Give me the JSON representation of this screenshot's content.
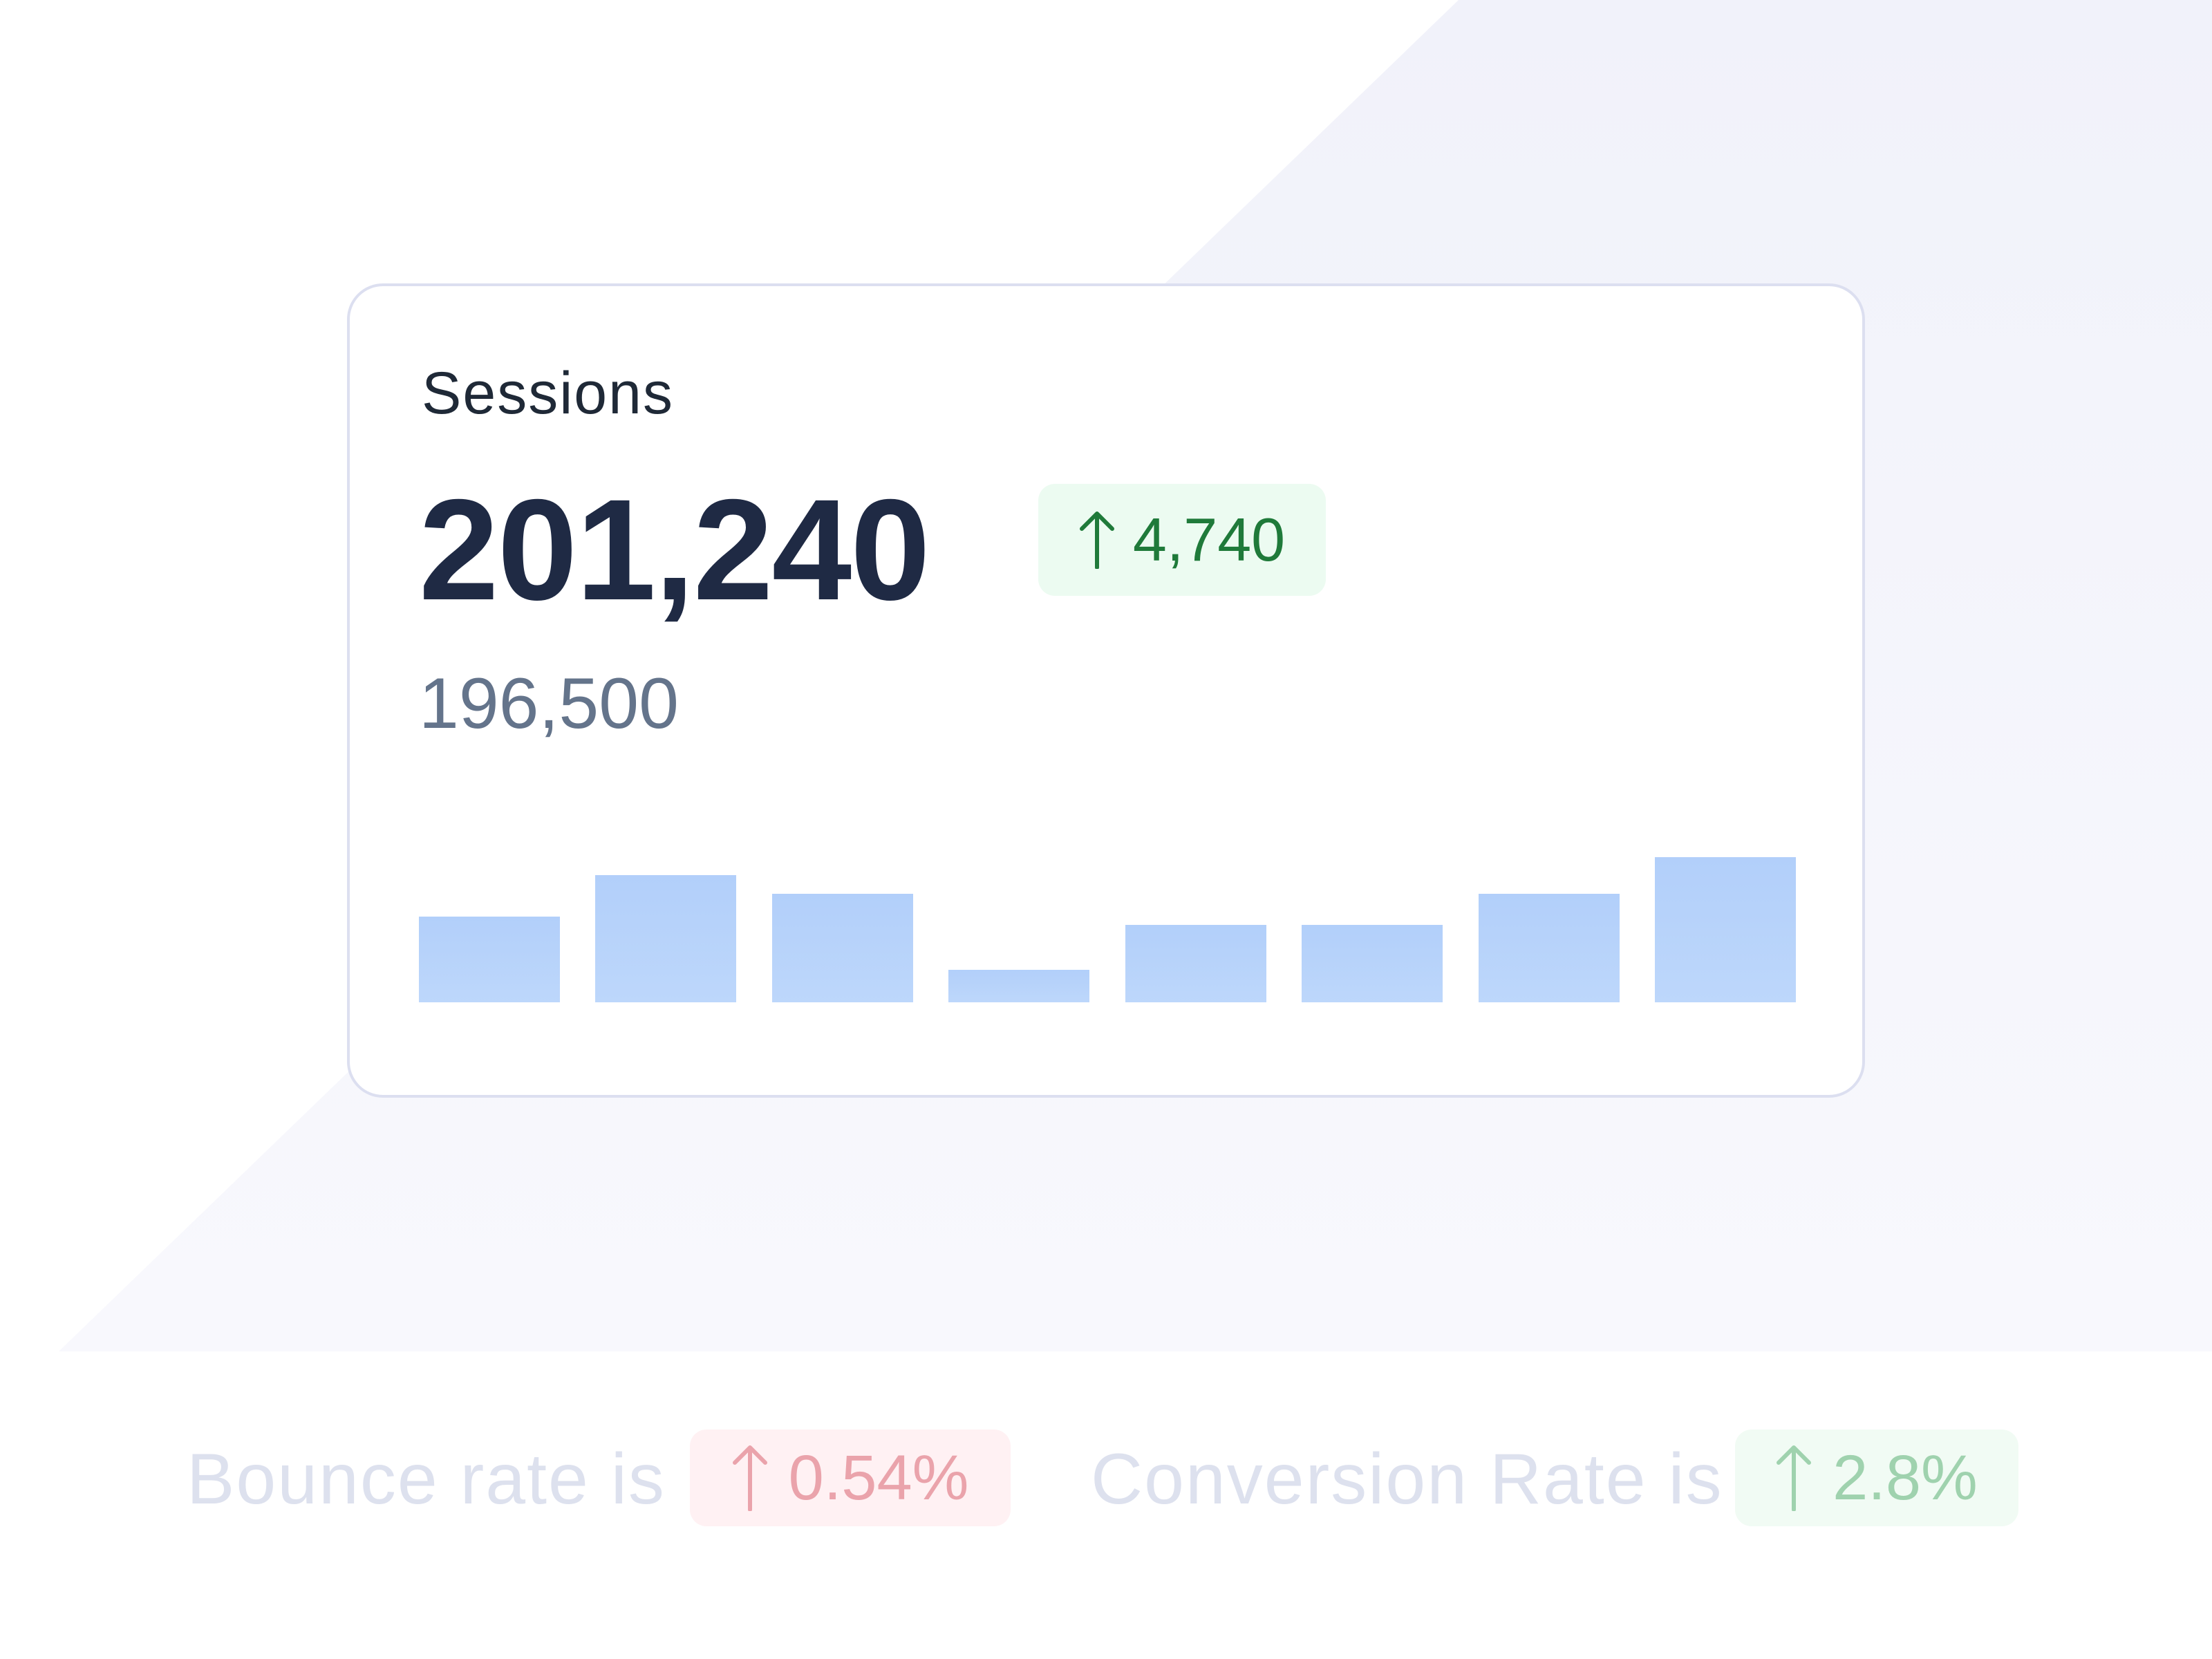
{
  "card": {
    "title": "Sessions",
    "value": "201,240",
    "delta": "4,740",
    "delta_direction": "up",
    "delta_icon": "arrow-up-icon",
    "previous": "196,500",
    "colors": {
      "delta_bg": "#ecfbf1",
      "delta_text": "#1f7a3a",
      "bar": "#b7d3fa"
    }
  },
  "chart_data": {
    "type": "bar",
    "values": [
      42,
      62,
      53,
      16,
      38,
      38,
      53,
      71
    ],
    "ylim": [
      0,
      100
    ],
    "grid": false
  },
  "footer": {
    "bounce_label": "Bounce rate is",
    "bounce_value": "0.54%",
    "bounce_icon": "arrow-up-icon",
    "conversion_label": "Conversion Rate is",
    "conversion_value": "2.8%",
    "conversion_icon": "arrow-up-icon"
  }
}
